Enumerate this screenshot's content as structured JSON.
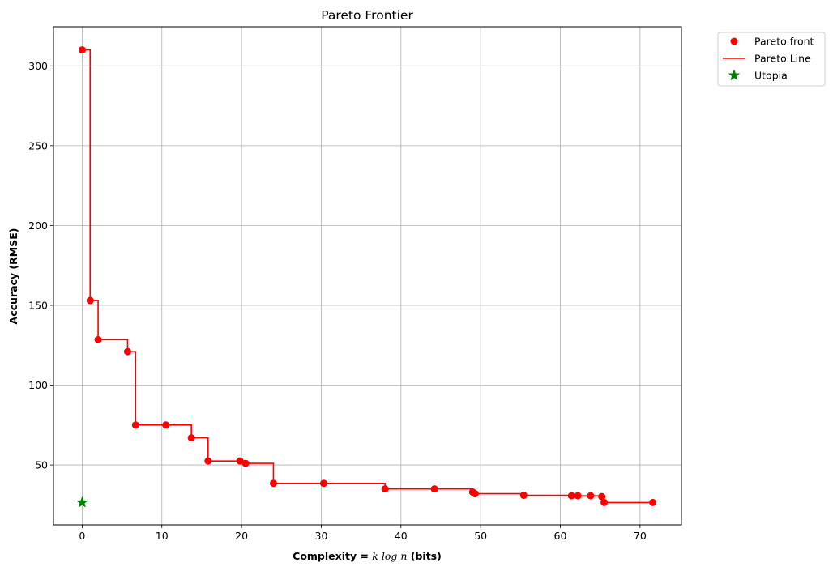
{
  "chart_data": {
    "type": "scatter",
    "title": "Pareto Frontier",
    "xlabel": {
      "prefix": "Complexity = ",
      "math": "k log n",
      "suffix": " (bits)"
    },
    "ylabel": "Accuracy (RMSE)",
    "xlim": [
      -3.6,
      75.2
    ],
    "ylim": [
      12.5,
      324.5
    ],
    "xticks": [
      0,
      10,
      20,
      30,
      40,
      50,
      60,
      70
    ],
    "yticks": [
      50,
      100,
      150,
      200,
      250,
      300
    ],
    "grid": true,
    "legend_position": "outside-top-right",
    "series": [
      {
        "name": "Pareto front",
        "kind": "scatter",
        "color": "#ff0000",
        "points": [
          [
            0,
            310
          ],
          [
            1.0,
            153
          ],
          [
            2.0,
            128.5
          ],
          [
            5.7,
            121
          ],
          [
            6.7,
            75
          ],
          [
            10.5,
            75
          ],
          [
            13.7,
            67
          ],
          [
            15.8,
            52.5
          ],
          [
            19.8,
            52.5
          ],
          [
            20.5,
            51
          ],
          [
            24.0,
            38.5
          ],
          [
            30.3,
            38.5
          ],
          [
            38.0,
            35
          ],
          [
            44.2,
            35
          ],
          [
            49.0,
            33
          ],
          [
            49.3,
            32
          ],
          [
            55.4,
            31
          ],
          [
            61.4,
            30.7
          ],
          [
            62.2,
            30.7
          ],
          [
            63.8,
            30.7
          ],
          [
            65.2,
            30.2
          ],
          [
            65.5,
            26.5
          ],
          [
            71.6,
            26.5
          ]
        ]
      },
      {
        "name": "Pareto Line",
        "kind": "step",
        "color": "#ff0000",
        "points": [
          [
            0,
            310
          ],
          [
            1.0,
            153
          ],
          [
            2.0,
            128.5
          ],
          [
            5.7,
            121
          ],
          [
            6.7,
            75
          ],
          [
            10.5,
            75
          ],
          [
            13.7,
            67
          ],
          [
            15.8,
            52.5
          ],
          [
            19.8,
            52.5
          ],
          [
            20.5,
            51
          ],
          [
            24.0,
            38.5
          ],
          [
            30.3,
            38.5
          ],
          [
            38.0,
            35
          ],
          [
            44.2,
            35
          ],
          [
            49.0,
            33
          ],
          [
            49.3,
            32
          ],
          [
            55.4,
            31
          ],
          [
            61.4,
            30.7
          ],
          [
            62.2,
            30.7
          ],
          [
            63.8,
            30.7
          ],
          [
            65.2,
            30.2
          ],
          [
            65.5,
            26.5
          ],
          [
            71.6,
            26.5
          ]
        ]
      },
      {
        "name": "Utopia",
        "kind": "marker-star",
        "color": "#008000",
        "points": [
          [
            0,
            26.5
          ]
        ]
      }
    ]
  }
}
